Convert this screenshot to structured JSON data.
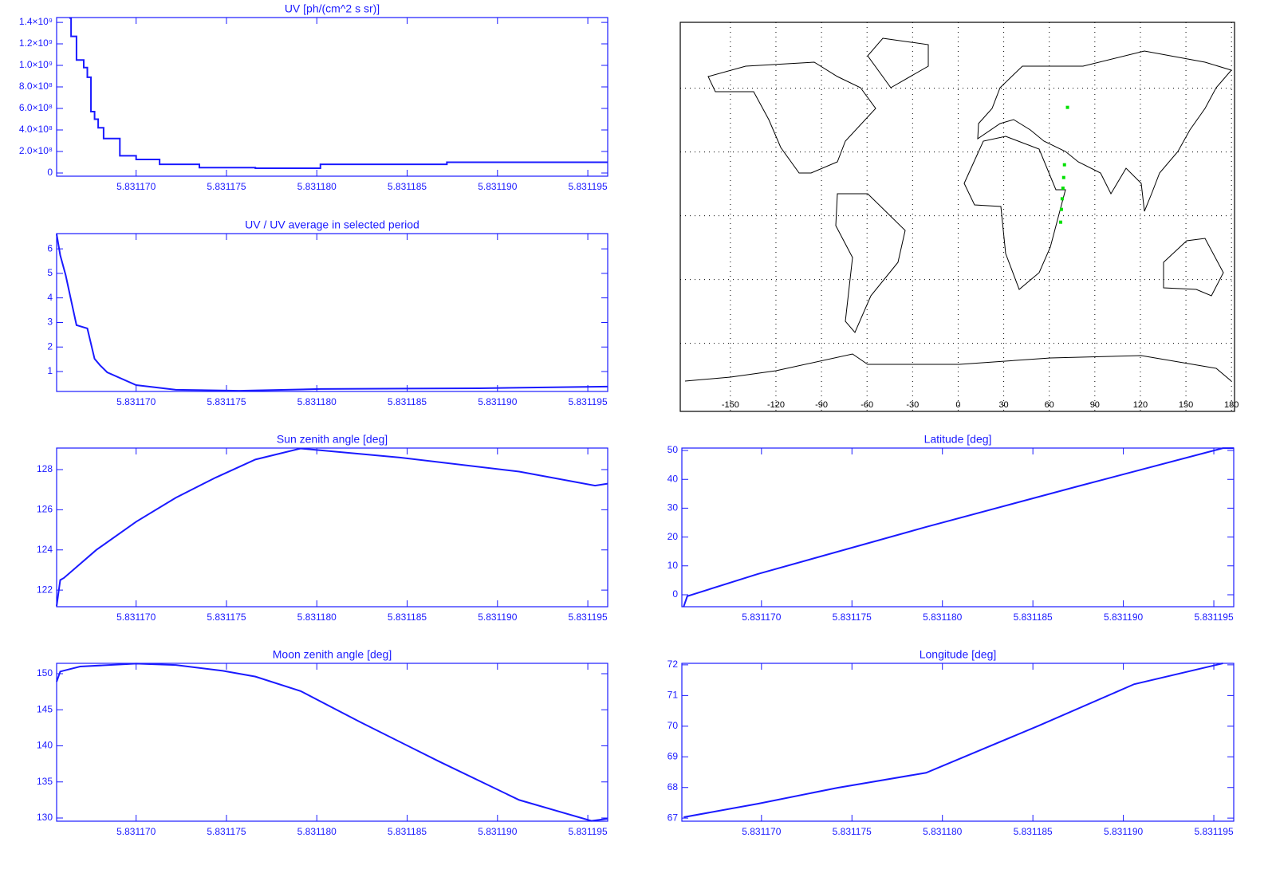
{
  "chart_data": [
    {
      "type": "line",
      "title": "UV [ph/(cm^2 s sr)]",
      "drawstyle": "steps-post",
      "xlim": [
        5.8311656,
        5.8311961
      ],
      "xticks": [
        {
          "value": 5.83117,
          "label": "5.831170"
        },
        {
          "value": 5.831175,
          "label": "5.831175"
        },
        {
          "value": 5.83118,
          "label": "5.831180"
        },
        {
          "value": 5.831185,
          "label": "5.831185"
        },
        {
          "value": 5.83119,
          "label": "5.831190"
        },
        {
          "value": 5.831195,
          "label": "5.831195"
        }
      ],
      "ylim": [
        -30000000,
        1445000000
      ],
      "yticks": [
        0,
        {
          "value": 200000000,
          "label": "2.0×10⁸"
        },
        {
          "value": 400000000,
          "label": "4.0×10⁸"
        },
        {
          "value": 600000000,
          "label": "6.0×10⁸"
        },
        {
          "value": 800000000,
          "label": "8.0×10⁸"
        },
        {
          "value": 1000000000,
          "label": "1.0×10⁹"
        },
        {
          "value": 1200000000,
          "label": "1.2×10⁹"
        },
        {
          "value": 1400000000,
          "label": "1.4×10⁹"
        }
      ],
      "x": [
        5.8311663,
        5.8311664,
        5.8311667,
        5.8311671,
        5.8311673,
        5.8311675,
        5.8311677,
        5.8311679,
        5.8311682,
        5.8311691,
        5.83117,
        5.8311713,
        5.8311735,
        5.8311766,
        5.8311802,
        5.8311872,
        5.8311961
      ],
      "series": [
        {
          "color": "#1a1aff",
          "values": [
            1440000000,
            1270000000,
            1050000000,
            980000000,
            890000000,
            570000000,
            500000000,
            420000000,
            320000000,
            160000000,
            126000000,
            80000000,
            50000000,
            44000000,
            80000000,
            100000000,
            100000000
          ]
        }
      ]
    },
    {
      "type": "map",
      "xlim": [
        -183,
        182
      ],
      "ylim": [
        -92,
        91
      ],
      "xticks": [
        -150,
        -120,
        -90,
        -60,
        -30,
        0,
        30,
        60,
        90,
        120,
        150,
        180
      ],
      "ygrid": [
        -60,
        -30,
        0,
        30,
        60
      ],
      "grid": true,
      "series": [
        {
          "color": "#00e000",
          "x": [
            67.5,
            68,
            68.5,
            69,
            69.5,
            70,
            72
          ],
          "values": [
            -3,
            3,
            8,
            13,
            18,
            24,
            51
          ]
        }
      ]
    },
    {
      "type": "line",
      "title": "UV / UV average in selected period",
      "xlim": [
        5.8311656,
        5.8311961
      ],
      "xticks": [
        {
          "value": 5.83117,
          "label": "5.831170"
        },
        {
          "value": 5.831175,
          "label": "5.831175"
        },
        {
          "value": 5.83118,
          "label": "5.831180"
        },
        {
          "value": 5.831185,
          "label": "5.831185"
        },
        {
          "value": 5.83119,
          "label": "5.831190"
        },
        {
          "value": 5.831195,
          "label": "5.831195"
        }
      ],
      "ylim": [
        0.19,
        6.62
      ],
      "yticks": [
        1,
        2,
        3,
        4,
        5,
        6
      ],
      "x": [
        5.8311656,
        5.8311658,
        5.8311661,
        5.8311667,
        5.8311673,
        5.8311677,
        5.831168,
        5.8311684,
        5.83117,
        5.8311722,
        5.8311757,
        5.8311802,
        5.831189,
        5.8311961
      ],
      "series": [
        {
          "color": "#1a1aff",
          "values": [
            6.6,
            5.74,
            4.93,
            2.89,
            2.76,
            1.52,
            1.26,
            0.97,
            0.45,
            0.26,
            0.22,
            0.29,
            0.32,
            0.39
          ]
        }
      ]
    },
    {
      "type": "line",
      "title": "Sun zenith angle [deg]",
      "xlim": [
        5.8311656,
        5.8311961
      ],
      "xticks": [
        {
          "value": 5.83117,
          "label": "5.831170"
        },
        {
          "value": 5.831175,
          "label": "5.831175"
        },
        {
          "value": 5.83118,
          "label": "5.831180"
        },
        {
          "value": 5.831185,
          "label": "5.831185"
        },
        {
          "value": 5.83119,
          "label": "5.831190"
        },
        {
          "value": 5.831195,
          "label": "5.831195"
        }
      ],
      "ylim": [
        121.17,
        129.07
      ],
      "yticks": [
        122,
        124,
        126,
        128
      ],
      "x": [
        5.8311656,
        5.8311658,
        5.831166,
        5.8311678,
        5.83117,
        5.8311722,
        5.8311744,
        5.8311766,
        5.8311791,
        5.8311846,
        5.8311912,
        5.8311954,
        5.8311961
      ],
      "series": [
        {
          "color": "#1a1aff",
          "values": [
            121.2,
            122.5,
            122.6,
            124.0,
            125.4,
            126.6,
            127.6,
            128.5,
            129.05,
            128.6,
            127.9,
            127.2,
            127.3
          ]
        }
      ]
    },
    {
      "type": "line",
      "title": "Latitude [deg]",
      "xlim": [
        5.8311656,
        5.8311961
      ],
      "xticks": [
        {
          "value": 5.83117,
          "label": "5.831170"
        },
        {
          "value": 5.831175,
          "label": "5.831175"
        },
        {
          "value": 5.83118,
          "label": "5.831180"
        },
        {
          "value": 5.831185,
          "label": "5.831185"
        },
        {
          "value": 5.83119,
          "label": "5.831190"
        },
        {
          "value": 5.831195,
          "label": "5.831195"
        }
      ],
      "ylim": [
        -4.14,
        50.83
      ],
      "yticks": [
        0,
        10,
        20,
        30,
        40,
        50
      ],
      "x": [
        5.8311657,
        5.8311659,
        5.8311663,
        5.8311698,
        5.8311791,
        5.8311875,
        5.8311955,
        5.8311961
      ],
      "series": [
        {
          "color": "#1a1aff",
          "values": [
            -4.1,
            -0.5,
            0.3,
            7.2,
            23.5,
            37.6,
            50.8,
            50.8
          ]
        }
      ]
    },
    {
      "type": "line",
      "title": "Moon zenith angle [deg]",
      "xlim": [
        5.8311656,
        5.8311961
      ],
      "xticks": [
        {
          "value": 5.83117,
          "label": "5.831170"
        },
        {
          "value": 5.831175,
          "label": "5.831175"
        },
        {
          "value": 5.83118,
          "label": "5.831180"
        },
        {
          "value": 5.831185,
          "label": "5.831185"
        },
        {
          "value": 5.83119,
          "label": "5.831190"
        },
        {
          "value": 5.831195,
          "label": "5.831195"
        }
      ],
      "ylim": [
        129.56,
        151.44
      ],
      "yticks": [
        130,
        135,
        140,
        145,
        150
      ],
      "x": [
        5.8311656,
        5.8311658,
        5.8311669,
        5.83117,
        5.8311722,
        5.8311748,
        5.8311766,
        5.8311791,
        5.8311824,
        5.8311868,
        5.8311912,
        5.8311952,
        5.8311961
      ],
      "series": [
        {
          "color": "#1a1aff",
          "values": [
            148.9,
            150.3,
            151.0,
            151.4,
            151.2,
            150.4,
            149.6,
            147.6,
            143.3,
            137.8,
            132.5,
            129.6,
            129.9
          ]
        }
      ]
    },
    {
      "type": "line",
      "title": "Longitude [deg]",
      "xlim": [
        5.8311656,
        5.8311961
      ],
      "xticks": [
        {
          "value": 5.83117,
          "label": "5.831170"
        },
        {
          "value": 5.831175,
          "label": "5.831175"
        },
        {
          "value": 5.83118,
          "label": "5.831180"
        },
        {
          "value": 5.831185,
          "label": "5.831185"
        },
        {
          "value": 5.83119,
          "label": "5.831190"
        },
        {
          "value": 5.831195,
          "label": "5.831195"
        }
      ],
      "ylim": [
        66.9,
        72.05
      ],
      "yticks": [
        67,
        68,
        69,
        70,
        71,
        72
      ],
      "x": [
        5.8311657,
        5.8311698,
        5.8311742,
        5.8311791,
        5.8311853,
        5.8311906,
        5.8311955
      ],
      "series": [
        {
          "color": "#1a1aff",
          "values": [
            67.03,
            67.47,
            67.99,
            68.48,
            70.01,
            71.37,
            72.05
          ]
        }
      ]
    }
  ]
}
